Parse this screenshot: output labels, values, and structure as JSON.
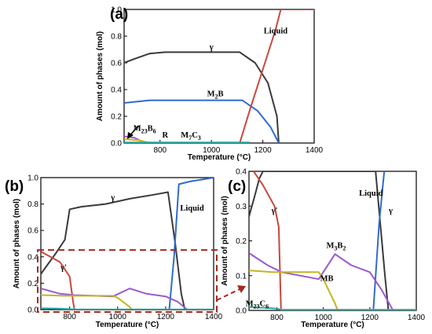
{
  "chart_data": [
    {
      "id": "a",
      "type": "line",
      "panel_label": "(a)",
      "xlabel": "Temperature (°C)",
      "ylabel": "Amount of phases (mol)",
      "xlim": [
        660,
        1400
      ],
      "ylim": [
        0,
        1.0
      ],
      "xticks": [
        800,
        1000,
        1200,
        1400
      ],
      "yticks": [
        0.0,
        0.2,
        0.4,
        0.6,
        0.8,
        1.0
      ],
      "ytick_labels": [
        "0.0",
        "0.2",
        "0.4",
        "0.6",
        "0.8",
        "1.0"
      ],
      "series": [
        {
          "key": "gamma",
          "color": "#3a3a3a",
          "x": [
            660,
            700,
            760,
            820,
            1000,
            1110,
            1170,
            1220,
            1255,
            1262
          ],
          "y": [
            0.6,
            0.63,
            0.67,
            0.68,
            0.68,
            0.68,
            0.6,
            0.45,
            0.2,
            0.0
          ]
        },
        {
          "key": "m2b",
          "color": "#2f6bd0",
          "x": [
            660,
            760,
            800,
            1000,
            1120,
            1180,
            1230,
            1262
          ],
          "y": [
            0.3,
            0.32,
            0.32,
            0.32,
            0.32,
            0.24,
            0.12,
            0.0
          ]
        },
        {
          "key": "liquid",
          "color": "#c9473c",
          "x": [
            1110,
            1150,
            1200,
            1250,
            1270,
            1400
          ],
          "y": [
            0.0,
            0.25,
            0.55,
            0.85,
            1.0,
            1.0
          ]
        },
        {
          "key": "m23b6",
          "color": "#9b59d0",
          "x": [
            660,
            700,
            740
          ],
          "y": [
            0.05,
            0.04,
            0.0
          ]
        },
        {
          "key": "r",
          "color": "#c4b51e",
          "x": [
            660,
            720,
            760
          ],
          "y": [
            0.03,
            0.02,
            0.0
          ]
        },
        {
          "key": "m7c3",
          "color": "#2aa8a0",
          "x": [
            660,
            900,
            1150
          ],
          "y": [
            0.005,
            0.005,
            0.005
          ]
        }
      ],
      "annotations": [
        {
          "x": 1000,
          "y": 0.7,
          "text": "γ",
          "sub": ""
        },
        {
          "x": 1015,
          "y": 0.35,
          "text": "M",
          "sub": "2",
          "after": "B"
        },
        {
          "x": 1250,
          "y": 0.82,
          "text": "Liquid",
          "sub": ""
        },
        {
          "x": 740,
          "y": 0.09,
          "text": "M",
          "sub": "23",
          "after": "B",
          "sub2": "6"
        },
        {
          "x": 820,
          "y": 0.04,
          "text": "R",
          "sub": ""
        },
        {
          "x": 920,
          "y": 0.04,
          "text": "M",
          "sub": "7",
          "after": "C",
          "sub2": "3"
        }
      ]
    },
    {
      "id": "b",
      "type": "line",
      "panel_label": "(b)",
      "xlabel": "Temperature (°C)",
      "ylabel": "Amount of phases (mol)",
      "xlim": [
        680,
        1400
      ],
      "ylim": [
        0,
        1.0
      ],
      "xticks": [
        800,
        1000,
        1200,
        1400
      ],
      "yticks": [
        0.0,
        0.2,
        0.4,
        0.6,
        0.8,
        1.0
      ],
      "ytick_labels": [
        "0.0",
        "0.2",
        "0.4",
        "0.6",
        "0.8",
        "1.0"
      ],
      "series": [
        {
          "key": "gamma",
          "color": "#3a3a3a",
          "x": [
            680,
            740,
            780,
            800,
            850,
            950,
            1050,
            1150,
            1210,
            1240,
            1265,
            1280
          ],
          "y": [
            0.27,
            0.42,
            0.53,
            0.76,
            0.78,
            0.8,
            0.84,
            0.87,
            0.89,
            0.5,
            0.12,
            0.0
          ]
        },
        {
          "key": "gamma_prime",
          "color": "#c9473c",
          "x": [
            680,
            760,
            800,
            815,
            820
          ],
          "y": [
            0.44,
            0.36,
            0.25,
            0.05,
            0.0
          ]
        },
        {
          "key": "liquid",
          "color": "#2f6bd0",
          "x": [
            1215,
            1235,
            1255,
            1300,
            1400
          ],
          "y": [
            0.0,
            0.4,
            0.95,
            0.97,
            1.0
          ]
        },
        {
          "key": "m3b2",
          "color": "#9b59d0",
          "x": [
            680,
            760,
            820,
            980,
            1050,
            1120,
            1200,
            1250,
            1290
          ],
          "y": [
            0.16,
            0.12,
            0.11,
            0.1,
            0.16,
            0.12,
            0.1,
            0.06,
            0.0
          ]
        },
        {
          "key": "mb",
          "color": "#c4b51e",
          "x": [
            680,
            780,
            900,
            980,
            1000,
            1050,
            1060
          ],
          "y": [
            0.11,
            0.105,
            0.105,
            0.105,
            0.09,
            0.02,
            0.0
          ]
        },
        {
          "key": "m23c6",
          "color": "#2aa8a0",
          "x": [
            680,
            760,
            800,
            820,
            1400
          ],
          "y": [
            0.01,
            0.008,
            0.005,
            0.002,
            0.002
          ]
        }
      ],
      "annotations": [
        {
          "x": 980,
          "y": 0.83,
          "text": "γ",
          "sub": ""
        },
        {
          "x": 1310,
          "y": 0.75,
          "text": "Liquid",
          "sub": ""
        },
        {
          "x": 775,
          "y": 0.3,
          "text": "γ'",
          "sub": ""
        }
      ],
      "highlight_box": {
        "x0": 680,
        "x1": 1400,
        "y0": 0.0,
        "y1": 0.44
      }
    },
    {
      "id": "c",
      "type": "line",
      "panel_label": "(c)",
      "xlabel": "Temperature (°C)",
      "ylabel": "Amount of phases (mol)",
      "xlim": [
        680,
        1400
      ],
      "ylim": [
        0,
        0.4
      ],
      "xticks": [
        800,
        1000,
        1200,
        1400
      ],
      "yticks": [
        0.0,
        0.1,
        0.2,
        0.3,
        0.4
      ],
      "ytick_labels": [
        "0.0",
        "0.1",
        "0.2",
        "0.3",
        "0.4"
      ],
      "series": [
        {
          "key": "gamma",
          "color": "#3a3a3a",
          "x": [
            680,
            705,
            725,
            740,
            1225,
            1265,
            1280
          ],
          "y": [
            0.27,
            0.33,
            0.38,
            0.4,
            0.4,
            0.1,
            0.0
          ]
        },
        {
          "key": "gamma_prime",
          "color": "#c9473c",
          "x": [
            700,
            740,
            790,
            808,
            818
          ],
          "y": [
            0.4,
            0.36,
            0.3,
            0.24,
            0.0
          ]
        },
        {
          "key": "liquid",
          "color": "#2f6bd0",
          "x": [
            1215,
            1240,
            1262
          ],
          "y": [
            0.0,
            0.25,
            0.4
          ]
        },
        {
          "key": "m3b2",
          "color": "#9b59d0",
          "x": [
            680,
            760,
            820,
            980,
            1050,
            1120,
            1200,
            1250,
            1300
          ],
          "y": [
            0.165,
            0.13,
            0.11,
            0.09,
            0.162,
            0.13,
            0.11,
            0.06,
            0.0
          ]
        },
        {
          "key": "mb",
          "color": "#c4b51e",
          "x": [
            680,
            780,
            900,
            980,
            1000,
            1050,
            1062
          ],
          "y": [
            0.115,
            0.11,
            0.11,
            0.11,
            0.09,
            0.02,
            0.0
          ]
        },
        {
          "key": "m23c6",
          "color": "#2aa8a0",
          "x": [
            680,
            760,
            800,
            820,
            1400
          ],
          "y": [
            0.01,
            0.007,
            0.005,
            0.002,
            0.002
          ]
        }
      ],
      "annotations": [
        {
          "x": 1205,
          "y": 0.33,
          "text": "Liquid",
          "sub": ""
        },
        {
          "x": 1290,
          "y": 0.28,
          "text": "γ",
          "sub": ""
        },
        {
          "x": 790,
          "y": 0.28,
          "text": "γ'",
          "sub": ""
        },
        {
          "x": 1055,
          "y": 0.18,
          "text": "M",
          "sub": "3",
          "after": "B",
          "sub2": "2"
        },
        {
          "x": 1015,
          "y": 0.085,
          "text": "MB",
          "sub": ""
        },
        {
          "x": 715,
          "y": 0.012,
          "text": "M",
          "sub": "23",
          "after": "C",
          "sub2": "6"
        }
      ]
    }
  ]
}
